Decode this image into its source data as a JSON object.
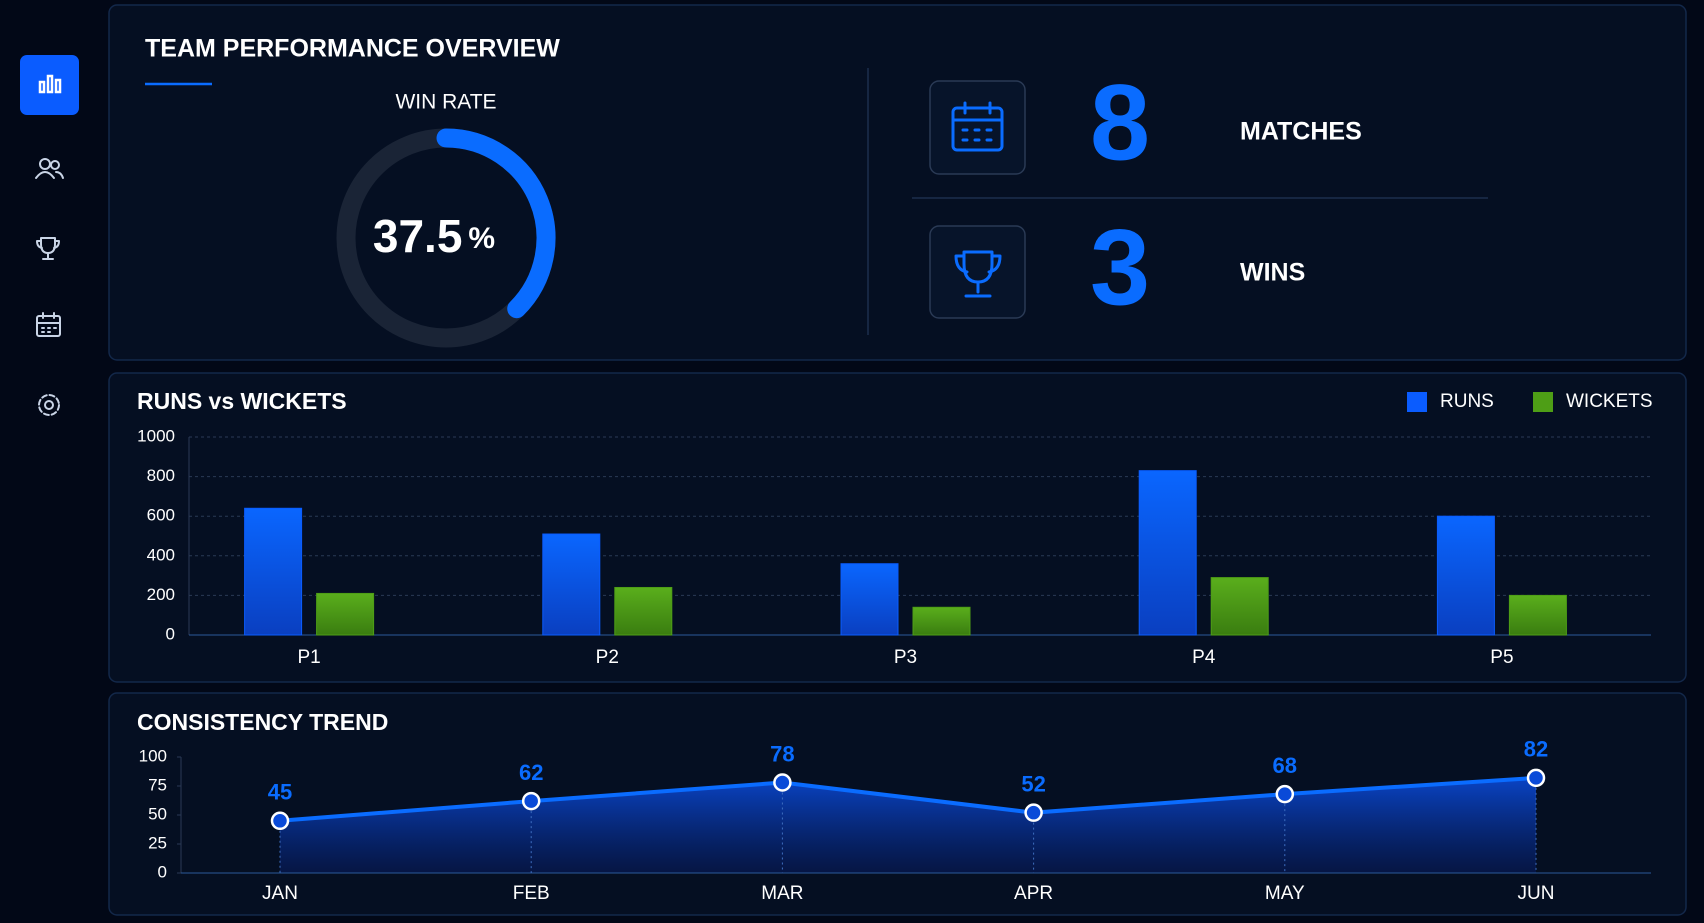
{
  "header": {
    "title": "TEAM PERFORMANCE OVERVIEW"
  },
  "kpis": [
    {
      "value": 8,
      "label": "MATCHES"
    },
    {
      "value": 3,
      "label": "WINS"
    }
  ],
  "chart_data": [
    {
      "type": "gauge",
      "title": "WIN RATE",
      "value": 37.5,
      "unit": "%",
      "ylim": [
        0,
        100
      ],
      "color": "#0a6cff"
    },
    {
      "type": "bar",
      "title": "RUNS vs WICKETS",
      "categories": [
        "P1",
        "P2",
        "P3",
        "P4",
        "P5"
      ],
      "series": [
        {
          "name": "RUNS",
          "color": "#0a5cff",
          "values": [
            640,
            510,
            360,
            830,
            600
          ]
        },
        {
          "name": "WICKETS",
          "color": "#4e9e16",
          "values": [
            210,
            240,
            140,
            290,
            200
          ]
        }
      ],
      "ylim": [
        0,
        1000
      ],
      "yticks": [
        0,
        200,
        400,
        600,
        800,
        1000
      ],
      "grid": true,
      "legend": "top-right"
    },
    {
      "type": "line",
      "title": "CONSISTENCY TREND",
      "categories": [
        "JAN",
        "FEB",
        "MAR",
        "APR",
        "MAY",
        "JUN"
      ],
      "values": [
        45,
        62,
        78,
        52,
        68,
        82
      ],
      "color": "#0a6cff",
      "ylim": [
        0,
        100
      ],
      "yticks": [
        0,
        25,
        50,
        75,
        100
      ]
    }
  ]
}
